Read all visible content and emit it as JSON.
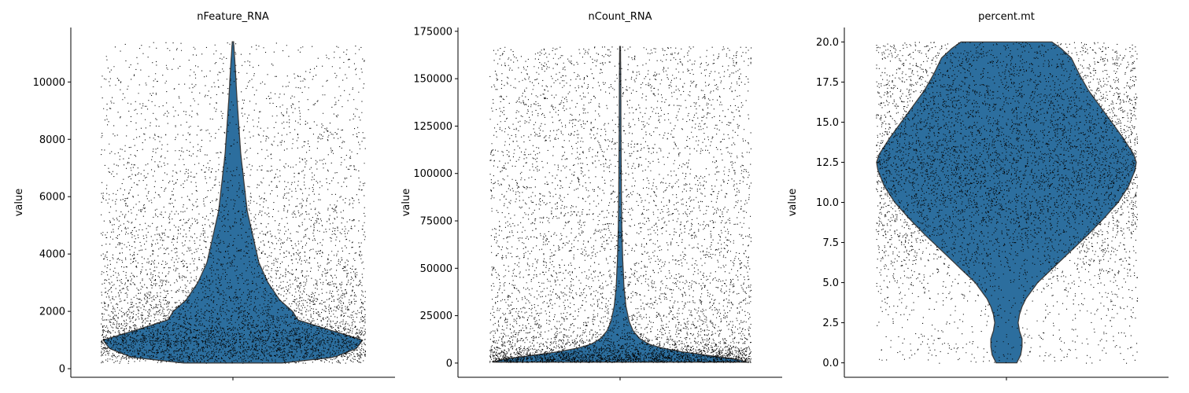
{
  "chart_data": [
    {
      "type": "violin",
      "title": "nFeature_RNA",
      "ylabel": "value",
      "ylim": [
        -300,
        11900
      ],
      "yticks": [
        0,
        2000,
        4000,
        6000,
        8000,
        10000
      ],
      "yticklabels": [
        "0",
        "2000",
        "4000",
        "6000",
        "8000",
        "10000"
      ],
      "grid": false,
      "violin_color": "#2c6e9e",
      "distribution": {
        "min": 200,
        "max": 11400,
        "profile": [
          [
            200,
            0.38
          ],
          [
            400,
            0.78
          ],
          [
            700,
            0.95
          ],
          [
            1000,
            1.0
          ],
          [
            1300,
            0.78
          ],
          [
            1700,
            0.5
          ],
          [
            2000,
            0.46
          ],
          [
            2400,
            0.36
          ],
          [
            3000,
            0.27
          ],
          [
            3700,
            0.2
          ],
          [
            4500,
            0.16
          ],
          [
            5500,
            0.11
          ],
          [
            6500,
            0.085
          ],
          [
            7500,
            0.06
          ],
          [
            8500,
            0.045
          ],
          [
            9500,
            0.03
          ],
          [
            10500,
            0.018
          ],
          [
            11400,
            0.005
          ]
        ]
      }
    },
    {
      "type": "violin",
      "title": "nCount_RNA",
      "ylabel": "value",
      "ylim": [
        -7500,
        177000
      ],
      "yticks": [
        0,
        25000,
        50000,
        75000,
        100000,
        125000,
        150000,
        175000
      ],
      "yticklabels": [
        "0",
        "25000",
        "50000",
        "75000",
        "100000",
        "125000",
        "150000",
        "175000"
      ],
      "grid": false,
      "violin_color": "#2c6e9e",
      "distribution": {
        "min": 500,
        "max": 167000,
        "profile": [
          [
            500,
            0.98
          ],
          [
            2000,
            0.9
          ],
          [
            4000,
            0.68
          ],
          [
            6000,
            0.47
          ],
          [
            8000,
            0.32
          ],
          [
            10000,
            0.22
          ],
          [
            13000,
            0.15
          ],
          [
            17000,
            0.1
          ],
          [
            22000,
            0.07
          ],
          [
            30000,
            0.045
          ],
          [
            40000,
            0.03
          ],
          [
            55000,
            0.02
          ],
          [
            70000,
            0.014
          ],
          [
            90000,
            0.01
          ],
          [
            120000,
            0.007
          ],
          [
            150000,
            0.005
          ],
          [
            167000,
            0.003
          ]
        ]
      }
    },
    {
      "type": "violin",
      "title": "percent.mt",
      "ylabel": "value",
      "ylim": [
        -0.9,
        20.9
      ],
      "yticks": [
        0,
        2.5,
        5,
        7.5,
        10,
        12.5,
        15,
        17.5,
        20
      ],
      "yticklabels": [
        "0.0",
        "2.5",
        "5.0",
        "7.5",
        "10.0",
        "12.5",
        "15.0",
        "17.5",
        "20.0"
      ],
      "grid": false,
      "violin_color": "#2c6e9e",
      "distribution": {
        "min": 0,
        "max": 20,
        "profile": [
          [
            0,
            0.08
          ],
          [
            0.5,
            0.11
          ],
          [
            1,
            0.12
          ],
          [
            1.5,
            0.12
          ],
          [
            2,
            0.1
          ],
          [
            2.5,
            0.09
          ],
          [
            3,
            0.1
          ],
          [
            3.5,
            0.12
          ],
          [
            4,
            0.15
          ],
          [
            5,
            0.24
          ],
          [
            6,
            0.37
          ],
          [
            7,
            0.5
          ],
          [
            8,
            0.63
          ],
          [
            9,
            0.75
          ],
          [
            10,
            0.86
          ],
          [
            11,
            0.94
          ],
          [
            12,
            0.99
          ],
          [
            12.5,
            1.0
          ],
          [
            13,
            0.98
          ],
          [
            14,
            0.9
          ],
          [
            15,
            0.81
          ],
          [
            16,
            0.72
          ],
          [
            17,
            0.63
          ],
          [
            18,
            0.56
          ],
          [
            19,
            0.5
          ],
          [
            19.6,
            0.42
          ],
          [
            20,
            0.35
          ]
        ]
      }
    }
  ]
}
